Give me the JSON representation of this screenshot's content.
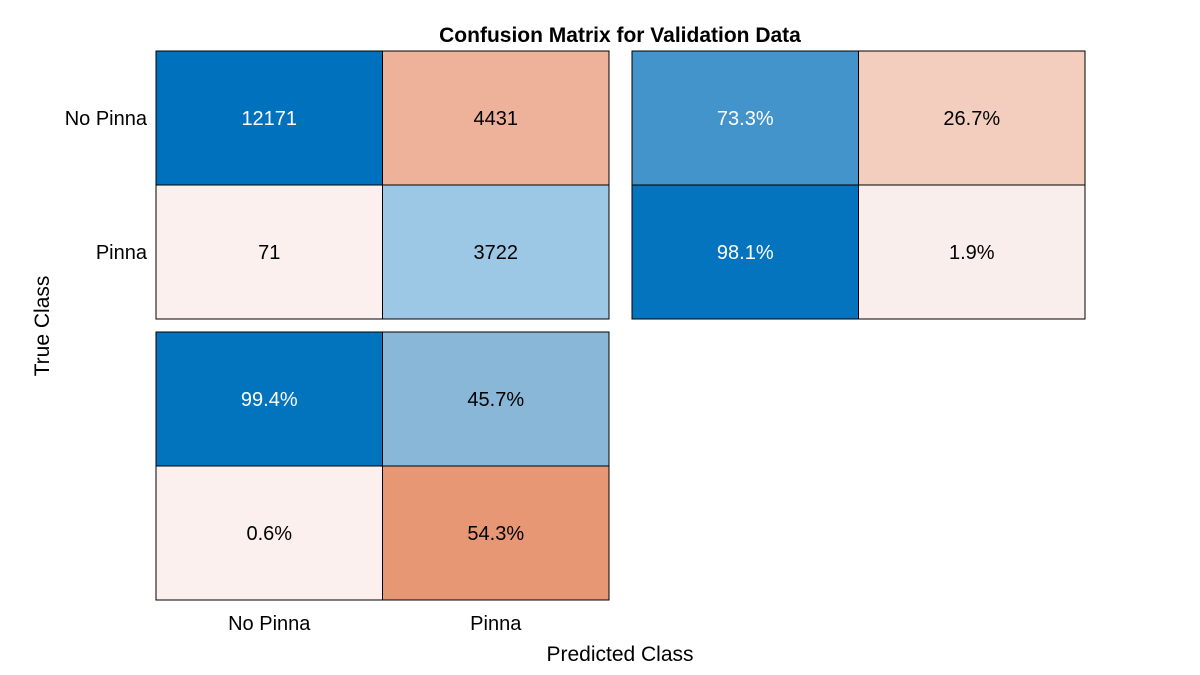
{
  "chart_data": {
    "type": "heatmap",
    "title": "Confusion Matrix for Validation Data",
    "xlabel": "Predicted Class",
    "ylabel": "True Class",
    "classes": [
      "No Pinna",
      "Pinna"
    ],
    "matrix": {
      "rows": [
        "No Pinna",
        "Pinna"
      ],
      "columns": [
        "No Pinna",
        "Pinna"
      ],
      "values": [
        [
          12171,
          4431
        ],
        [
          71,
          3722
        ]
      ]
    },
    "row_summary": {
      "values": [
        [
          "73.3%",
          "26.7%"
        ],
        [
          "98.1%",
          "1.9%"
        ]
      ]
    },
    "column_summary": {
      "values": [
        [
          "99.4%",
          "45.7%"
        ],
        [
          "0.6%",
          "54.3%"
        ]
      ]
    },
    "colors": {
      "correct_dark": "#0072bd",
      "correct_light": "#aacfe8",
      "error_dark": "#d95319",
      "error_light": "#fbf1ef",
      "white_text": "#ffffff",
      "dark_text": "#000000",
      "border": "#000000"
    }
  }
}
